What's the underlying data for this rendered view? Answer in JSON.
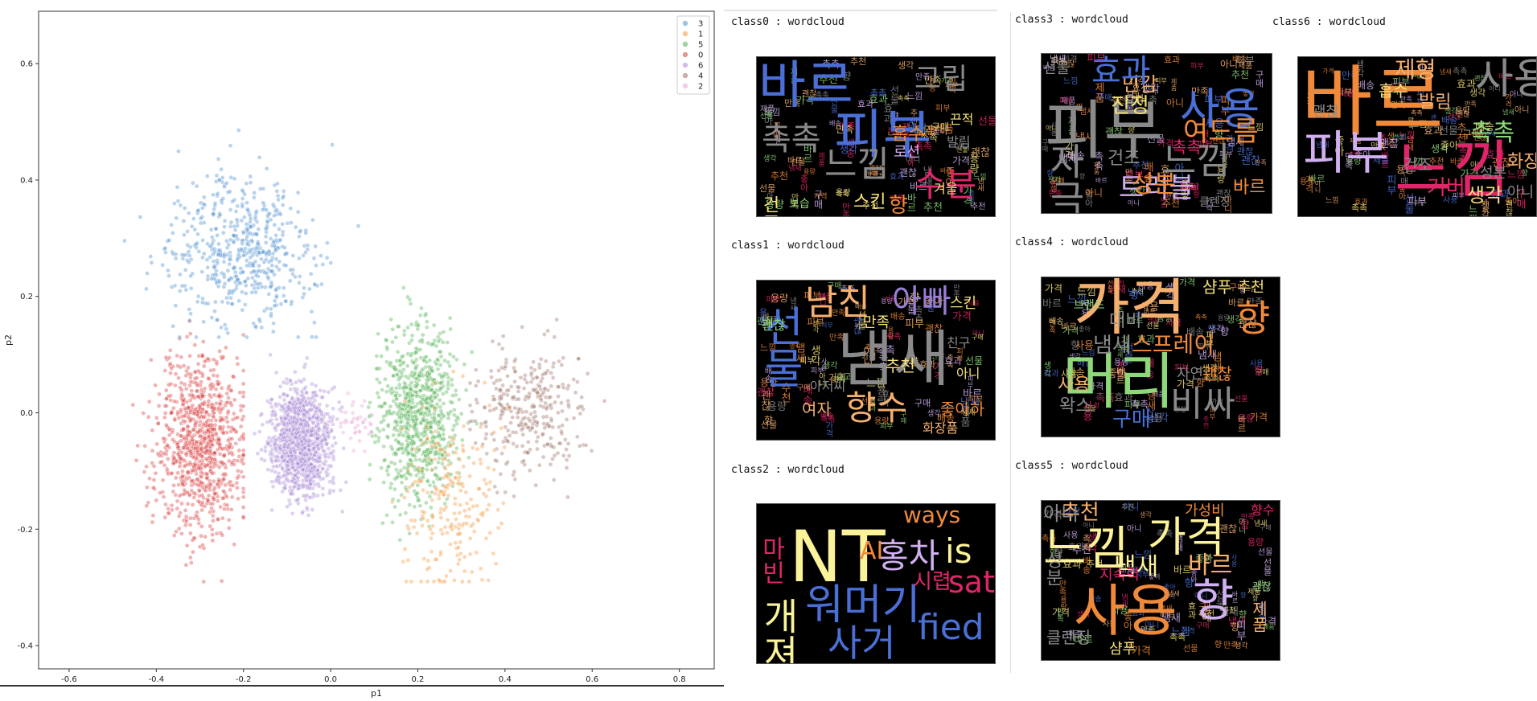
{
  "chart_data": {
    "type": "scatter",
    "title": "",
    "xlabel": "p1",
    "ylabel": "p2",
    "xlim": [
      -0.67,
      0.88
    ],
    "ylim": [
      -0.44,
      0.69
    ],
    "xticks": [
      -0.6,
      -0.4,
      -0.2,
      0.0,
      0.2,
      0.4,
      0.6,
      0.8
    ],
    "yticks": [
      -0.4,
      -0.2,
      0.0,
      0.2,
      0.4,
      0.6
    ],
    "xtick_labels": [
      "-0.6",
      "-0.4",
      "-0.2",
      "0.0",
      "0.2",
      "0.4",
      "0.6",
      "0.8"
    ],
    "ytick_labels": [
      "-0.4",
      "-0.2",
      "0.0",
      "0.2",
      "0.4",
      "0.6"
    ],
    "grid": false,
    "legend_position": "top-right",
    "legend": [
      "3",
      "1",
      "5",
      "0",
      "6",
      "4",
      "2"
    ],
    "series": [
      {
        "name": "3",
        "color": "#4a8fcf",
        "x_range": [
          -0.5,
          0.15
        ],
        "y_range": [
          0.13,
          0.63
        ],
        "center": [
          -0.2,
          0.28
        ]
      },
      {
        "name": "1",
        "color": "#f5973a",
        "x_range": [
          0.05,
          0.48
        ],
        "y_range": [
          -0.29,
          0.27
        ],
        "center": [
          0.28,
          -0.15
        ]
      },
      {
        "name": "5",
        "color": "#4eb04e",
        "x_range": [
          0.02,
          0.35
        ],
        "y_range": [
          -0.28,
          0.3
        ],
        "center": [
          0.2,
          0.0
        ]
      },
      {
        "name": "0",
        "color": "#d93b3b",
        "x_range": [
          -0.6,
          -0.2
        ],
        "y_range": [
          -0.38,
          0.22
        ],
        "center": [
          -0.3,
          -0.05
        ]
      },
      {
        "name": "6",
        "color": "#a98ad6",
        "x_range": [
          -0.2,
          0.07
        ],
        "y_range": [
          -0.25,
          0.12
        ],
        "center": [
          -0.07,
          -0.05
        ]
      },
      {
        "name": "4",
        "color": "#9a6f65",
        "x_range": [
          0.32,
          0.8
        ],
        "y_range": [
          -0.17,
          0.25
        ],
        "center": [
          0.45,
          0.0
        ]
      },
      {
        "name": "2",
        "color": "#e8a3d4",
        "x_range": [
          0.0,
          0.15
        ],
        "y_range": [
          -0.1,
          0.05
        ],
        "center": [
          0.06,
          -0.02
        ]
      }
    ]
  },
  "wordclouds": [
    {
      "title": "class0 : wordcloud",
      "words": [
        {
          "t": "바르",
          "c": "#4a6fd6"
        },
        {
          "t": "피부",
          "c": "#4a6fd6"
        },
        {
          "t": "수분",
          "c": "#e0266a"
        },
        {
          "t": "그립",
          "c": "#8a8a8a"
        },
        {
          "t": "느낌",
          "c": "#8a8a8a"
        },
        {
          "t": "촉촉",
          "c": "#8a8a8a"
        },
        {
          "t": "건조",
          "c": "#f5e27a"
        },
        {
          "t": "향",
          "c": "#f08a3a"
        },
        {
          "t": "흡수",
          "c": "#f08a3a"
        },
        {
          "t": "끈적",
          "c": "#f5e27a"
        },
        {
          "t": "발림",
          "c": "#8a8a8a"
        },
        {
          "t": "스킨",
          "c": "#f5e27a"
        },
        {
          "t": "겨울",
          "c": "#f5e27a"
        },
        {
          "t": "보습",
          "c": "#8fd87a"
        },
        {
          "t": "로션",
          "c": "#d0b0f0"
        }
      ]
    },
    {
      "title": "class1 : wordcloud",
      "words": [
        {
          "t": "남친",
          "c": "#f5b070"
        },
        {
          "t": "아빠",
          "c": "#9a7fd6"
        },
        {
          "t": "냄새",
          "c": "#8a8a8a"
        },
        {
          "t": "향수",
          "c": "#f5b070"
        },
        {
          "t": "선물",
          "c": "#4a6fd6"
        },
        {
          "t": "스킨",
          "c": "#f5e27a"
        },
        {
          "t": "만족",
          "c": "#f5e27a"
        },
        {
          "t": "친구",
          "c": "#8a8a8a"
        },
        {
          "t": "좋아하",
          "c": "#f08a3a"
        },
        {
          "t": "여자",
          "c": "#f5b070"
        },
        {
          "t": "아저씨",
          "c": "#8a8a8a"
        },
        {
          "t": "추천",
          "c": "#f5e27a"
        },
        {
          "t": "화장품",
          "c": "#f5b070"
        },
        {
          "t": "괜찮",
          "c": "#8fd87a"
        },
        {
          "t": "아니",
          "c": "#f5e27a"
        }
      ]
    },
    {
      "title": "class2 : wordcloud",
      "words": [
        {
          "t": "NT",
          "c": "#fbf29a"
        },
        {
          "t": "ways",
          "c": "#f08a3a"
        },
        {
          "t": "is",
          "c": "#fbf29a"
        },
        {
          "t": "sat",
          "c": "#e0266a"
        },
        {
          "t": "fied",
          "c": "#4a6fd6"
        },
        {
          "t": "홍차",
          "c": "#d0b0f0"
        },
        {
          "t": "워머기",
          "c": "#4a6fd6"
        },
        {
          "t": "사거",
          "c": "#4a6fd6"
        },
        {
          "t": "시렵",
          "c": "#e0266a"
        },
        {
          "t": "AI",
          "c": "#f08a3a"
        },
        {
          "t": "개져",
          "c": "#fbf29a"
        },
        {
          "t": "마빈",
          "c": "#e0266a"
        }
      ]
    },
    {
      "title": "class3 : wordcloud",
      "words": [
        {
          "t": "피부",
          "c": "#8a8a8a"
        },
        {
          "t": "사용",
          "c": "#4a6fd6"
        },
        {
          "t": "느낌",
          "c": "#8a8a8a"
        },
        {
          "t": "트러블",
          "c": "#d0b0f0"
        },
        {
          "t": "자극",
          "c": "#8a8a8a"
        },
        {
          "t": "성분",
          "c": "#f08a3a"
        },
        {
          "t": "진정",
          "c": "#f5e27a"
        },
        {
          "t": "여드름",
          "c": "#f08a3a"
        },
        {
          "t": "민감",
          "c": "#f5b070"
        },
        {
          "t": "건조",
          "c": "#8a8a8a"
        },
        {
          "t": "효과",
          "c": "#4a6fd6"
        },
        {
          "t": "선물",
          "c": "#8a8a8a"
        },
        {
          "t": "바르",
          "c": "#f08a3a"
        },
        {
          "t": "촉촉",
          "c": "#e0266a"
        },
        {
          "t": "클렌징",
          "c": "#8a8a8a"
        }
      ]
    },
    {
      "title": "class4 : wordcloud",
      "words": [
        {
          "t": "가격",
          "c": "#f5b070"
        },
        {
          "t": "머리",
          "c": "#8fd87a"
        },
        {
          "t": "비싸",
          "c": "#8a8a8a"
        },
        {
          "t": "향",
          "c": "#f08a3a"
        },
        {
          "t": "냄새",
          "c": "#8a8a8a"
        },
        {
          "t": "스프레이",
          "c": "#f08a3a"
        },
        {
          "t": "구매",
          "c": "#4a6fd6"
        },
        {
          "t": "사용",
          "c": "#f5b070"
        },
        {
          "t": "대비",
          "c": "#8a8a8a"
        },
        {
          "t": "왁스",
          "c": "#8a8a8a"
        },
        {
          "t": "샴푸",
          "c": "#f5e27a"
        },
        {
          "t": "추천",
          "c": "#f5e27a"
        },
        {
          "t": "자연",
          "c": "#8a8a8a"
        },
        {
          "t": "괜찮",
          "c": "#f08a3a"
        },
        {
          "t": "브랜드",
          "c": "#8fd87a"
        }
      ]
    },
    {
      "title": "class5 : wordcloud",
      "words": [
        {
          "t": "느낌",
          "c": "#fbf29a"
        },
        {
          "t": "가격",
          "c": "#fbf29a"
        },
        {
          "t": "사용",
          "c": "#f08a3a"
        },
        {
          "t": "향",
          "c": "#d0b0f0"
        },
        {
          "t": "냄새",
          "c": "#fbf29a"
        },
        {
          "t": "바르",
          "c": "#f5b070"
        },
        {
          "t": "추천",
          "c": "#f5b070"
        },
        {
          "t": "성분",
          "c": "#8a8a8a"
        },
        {
          "t": "아니",
          "c": "#8a8a8a"
        },
        {
          "t": "지속력",
          "c": "#e0266a"
        },
        {
          "t": "클렌징",
          "c": "#8a8a8a"
        },
        {
          "t": "샴푸",
          "c": "#f5e27a"
        },
        {
          "t": "가성비",
          "c": "#f08a3a"
        },
        {
          "t": "향수",
          "c": "#e0266a"
        },
        {
          "t": "제품",
          "c": "#f5b070"
        }
      ]
    },
    {
      "title": "class6 : wordcloud",
      "words": [
        {
          "t": "바르",
          "c": "#f08a3a"
        },
        {
          "t": "느낌",
          "c": "#e0266a"
        },
        {
          "t": "피부",
          "c": "#d0b0f0"
        },
        {
          "t": "사용",
          "c": "#8a8a8a"
        },
        {
          "t": "촉촉",
          "c": "#8fd87a"
        },
        {
          "t": "제형",
          "c": "#f5b070"
        },
        {
          "t": "발림",
          "c": "#f5b070"
        },
        {
          "t": "흡수",
          "c": "#f5e27a"
        },
        {
          "t": "커버",
          "c": "#e0266a"
        },
        {
          "t": "생각",
          "c": "#f5e27a"
        },
        {
          "t": "화장품",
          "c": "#f5b070"
        },
        {
          "t": "건조",
          "c": "#8a8a8a"
        },
        {
          "t": "괜찮",
          "c": "#8a8a8a"
        },
        {
          "t": "아니",
          "c": "#8a8a8a"
        },
        {
          "t": "성분",
          "c": "#8a8a8a"
        }
      ]
    }
  ]
}
